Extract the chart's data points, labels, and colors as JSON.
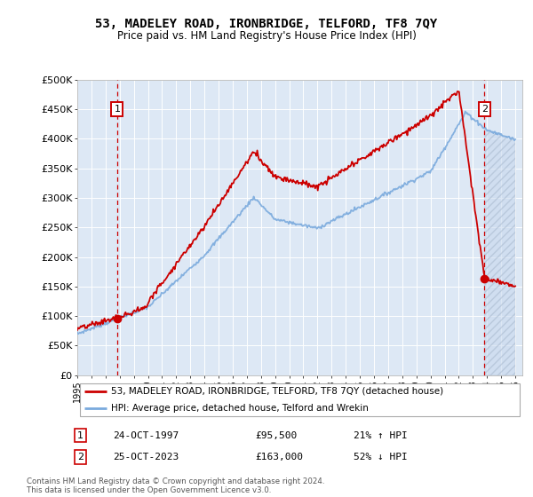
{
  "title": "53, MADELEY ROAD, IRONBRIDGE, TELFORD, TF8 7QY",
  "subtitle": "Price paid vs. HM Land Registry's House Price Index (HPI)",
  "hpi_color": "#7aaadd",
  "price_color": "#cc0000",
  "background_plot": "#dde8f5",
  "ylim": [
    0,
    500000
  ],
  "yticks": [
    0,
    50000,
    100000,
    150000,
    200000,
    250000,
    300000,
    350000,
    400000,
    450000,
    500000
  ],
  "ytick_labels": [
    "£0",
    "£50K",
    "£100K",
    "£150K",
    "£200K",
    "£250K",
    "£300K",
    "£350K",
    "£400K",
    "£450K",
    "£500K"
  ],
  "xlim_start": 1995.0,
  "xlim_end": 2026.5,
  "sale1_x": 1997.82,
  "sale1_y": 95500,
  "sale1_label": "1",
  "sale1_date": "24-OCT-1997",
  "sale1_price": "£95,500",
  "sale1_hpi": "21% ↑ HPI",
  "sale2_x": 2023.82,
  "sale2_y": 163000,
  "sale2_label": "2",
  "sale2_date": "25-OCT-2023",
  "sale2_price": "£163,000",
  "sale2_hpi": "52% ↓ HPI",
  "legend_line1": "53, MADELEY ROAD, IRONBRIDGE, TELFORD, TF8 7QY (detached house)",
  "legend_line2": "HPI: Average price, detached house, Telford and Wrekin",
  "footer": "Contains HM Land Registry data © Crown copyright and database right 2024.\nThis data is licensed under the Open Government Licence v3.0."
}
